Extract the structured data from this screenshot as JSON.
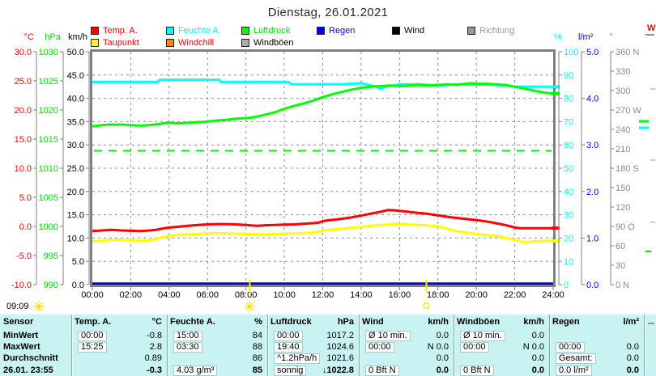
{
  "title": "Dienstag, 26.01.2021",
  "legend": [
    {
      "label": "Temp. A.",
      "swatch": "#ff0000",
      "text": "#ff0000",
      "row": 1
    },
    {
      "label": "Feuchte A.",
      "swatch": "#00ffff",
      "text": "#00ffff",
      "row": 1
    },
    {
      "label": "Luftdruck",
      "swatch": "#00ff00",
      "text": "#00dd00",
      "row": 1
    },
    {
      "label": "Regen",
      "swatch": "#0000ff",
      "text": "#0000ff",
      "row": 1
    },
    {
      "label": "Wind",
      "swatch": "#000000",
      "text": "#000000",
      "row": 1
    },
    {
      "label": "Richtung",
      "swatch": "#999999",
      "text": "#999999",
      "row": 1
    },
    {
      "label": "Taupunkt",
      "swatch": "#ffff00",
      "text": "#ff0000",
      "row": 2
    },
    {
      "label": "Windchill",
      "swatch": "#ff8800",
      "text": "#ff0000",
      "row": 2
    },
    {
      "label": "Windböen",
      "swatch": "#aaaaaa",
      "text": "#000000",
      "row": 2
    }
  ],
  "axes": {
    "left": [
      {
        "id": "celsius",
        "unit": "°C",
        "color": "#ff0000",
        "labels": [
          "30.0",
          "25.0",
          "20.0",
          "15.0",
          "10.0",
          "5.0",
          "0.0",
          "-5.0",
          "-10.0"
        ]
      },
      {
        "id": "hpa",
        "unit": "hPa",
        "color": "#00dd00",
        "labels": [
          "1030",
          "1025",
          "1020",
          "1015",
          "1010",
          "1005",
          "1000",
          "995",
          "990"
        ]
      },
      {
        "id": "kmh",
        "unit": "km/h",
        "color": "#000000",
        "labels": [
          "50.0",
          "45.0",
          "40.0",
          "35.0",
          "30.0",
          "25.0",
          "20.0",
          "15.0",
          "10.0",
          "5.0",
          "0.0"
        ]
      }
    ],
    "right": [
      {
        "id": "percent",
        "unit": "%",
        "color": "#00ffff",
        "labels": [
          "100",
          "90",
          "80",
          "70",
          "60",
          "50",
          "40",
          "30",
          "20",
          "10",
          "0"
        ]
      },
      {
        "id": "lm2",
        "unit": "l/m²",
        "color": "#0000ff",
        "labels": [
          "5.0",
          "4.0",
          "3.0",
          "2.0",
          "1.0",
          "0.0"
        ]
      },
      {
        "id": "deg",
        "unit": "°",
        "color": "#8a8a8a",
        "labels": [
          "360 N",
          "330",
          "300",
          "270 W",
          "240",
          "210",
          "180 S",
          "150",
          "120",
          "90 O",
          "60",
          "30",
          "0  N"
        ]
      },
      {
        "id": "wm2",
        "unit": "W",
        "color": "#ff0000",
        "labels": []
      }
    ]
  },
  "sun": {
    "duration": "09:09",
    "sunrise_hour": 8.2,
    "sunset_hour": 17.4
  },
  "chart_data": {
    "type": "line",
    "title": "Dienstag, 26.01.2021",
    "x_ticks": [
      "00:00",
      "02:00",
      "04:00",
      "06:00",
      "08:00",
      "10:00",
      "12:00",
      "14:00",
      "16:00",
      "18:00",
      "20:00",
      "22:00",
      "24:00"
    ],
    "x_range_hours": [
      0,
      24
    ],
    "grid": true,
    "y_axes": {
      "celsius": [
        -10,
        30
      ],
      "hpa": [
        990,
        1030
      ],
      "kmh": [
        0,
        50
      ],
      "percent": [
        0,
        100
      ],
      "lm2": [
        0,
        5
      ],
      "deg": [
        0,
        360
      ]
    },
    "reference_lines": [
      {
        "axis": "hpa",
        "value": 1013,
        "color": "#00ff00",
        "style": "dashed"
      }
    ],
    "series": [
      {
        "name": "Wind",
        "axis": "kmh",
        "color": "#000000",
        "width": 2,
        "end_marker": false,
        "points": [
          [
            0,
            0
          ],
          [
            24,
            0
          ]
        ]
      },
      {
        "name": "Regen",
        "axis": "lm2",
        "color": "#0000ff",
        "width": 2,
        "end_marker": false,
        "points": [
          [
            0,
            0.03
          ],
          [
            24,
            0.03
          ]
        ]
      },
      {
        "name": "Feuchte A.",
        "axis": "percent",
        "color": "#00ffff",
        "width": 3,
        "end_marker": true,
        "points": [
          [
            0,
            87
          ],
          [
            3.4,
            87
          ],
          [
            3.5,
            88
          ],
          [
            6.6,
            88
          ],
          [
            6.7,
            87
          ],
          [
            10.2,
            87
          ],
          [
            10.4,
            86
          ],
          [
            13,
            86
          ],
          [
            14,
            86.5
          ],
          [
            14.8,
            85
          ],
          [
            15,
            84
          ],
          [
            15.3,
            85
          ],
          [
            16,
            86
          ],
          [
            17,
            86
          ],
          [
            18,
            85.5
          ],
          [
            19,
            86
          ],
          [
            20.5,
            86
          ],
          [
            21.5,
            85.5
          ],
          [
            22,
            85
          ],
          [
            24,
            85
          ]
        ]
      },
      {
        "name": "Luftdruck",
        "axis": "hpa",
        "color": "#00ff00",
        "width": 3,
        "end_marker": true,
        "points": [
          [
            0,
            1017.2
          ],
          [
            0.5,
            1017.4
          ],
          [
            1,
            1017.5
          ],
          [
            1.5,
            1017.5
          ],
          [
            2,
            1017.4
          ],
          [
            2.5,
            1017.3
          ],
          [
            3,
            1017.4
          ],
          [
            3.5,
            1017.6
          ],
          [
            4,
            1017.8
          ],
          [
            4.5,
            1017.7
          ],
          [
            5,
            1017.8
          ],
          [
            5.5,
            1017.9
          ],
          [
            6,
            1018.0
          ],
          [
            6.5,
            1018.2
          ],
          [
            7,
            1018.3
          ],
          [
            7.5,
            1018.5
          ],
          [
            8,
            1018.6
          ],
          [
            8.5,
            1018.8
          ],
          [
            9,
            1019.2
          ],
          [
            9.5,
            1019.6
          ],
          [
            10,
            1020.2
          ],
          [
            10.5,
            1020.7
          ],
          [
            11,
            1021.1
          ],
          [
            11.5,
            1021.6
          ],
          [
            12,
            1022.2
          ],
          [
            12.5,
            1022.7
          ],
          [
            13,
            1023.1
          ],
          [
            13.5,
            1023.5
          ],
          [
            14,
            1023.8
          ],
          [
            14.5,
            1024.0
          ],
          [
            15,
            1024.1
          ],
          [
            15.5,
            1024.2
          ],
          [
            16,
            1024.1
          ],
          [
            16.5,
            1024.2
          ],
          [
            17,
            1024.3
          ],
          [
            17.5,
            1024.2
          ],
          [
            18,
            1024.3
          ],
          [
            18.5,
            1024.4
          ],
          [
            19,
            1024.3
          ],
          [
            19.7,
            1024.6
          ],
          [
            20,
            1024.5
          ],
          [
            20.5,
            1024.5
          ],
          [
            21,
            1024.4
          ],
          [
            21.5,
            1024.3
          ],
          [
            22,
            1024.0
          ],
          [
            22.5,
            1023.7
          ],
          [
            23,
            1023.3
          ],
          [
            23.5,
            1023.0
          ],
          [
            24,
            1022.8
          ]
        ]
      },
      {
        "name": "Taupunkt",
        "axis": "celsius",
        "color": "#ffff00",
        "width": 3,
        "end_marker": true,
        "points": [
          [
            0,
            -2.6
          ],
          [
            0.3,
            -2.5
          ],
          [
            0.6,
            -2.4
          ],
          [
            1,
            -2.3
          ],
          [
            1.5,
            -2.3
          ],
          [
            2,
            -2.4
          ],
          [
            2.5,
            -2.5
          ],
          [
            3,
            -2.4
          ],
          [
            3.3,
            -2.2
          ],
          [
            3.6,
            -1.9
          ],
          [
            4,
            -1.7
          ],
          [
            4.3,
            -1.5
          ],
          [
            4.6,
            -1.4
          ],
          [
            5,
            -1.35
          ],
          [
            5.5,
            -1.3
          ],
          [
            6,
            -1.2
          ],
          [
            6.5,
            -1.15
          ],
          [
            7,
            -1.2
          ],
          [
            7.5,
            -1.25
          ],
          [
            8,
            -1.3
          ],
          [
            8.5,
            -1.35
          ],
          [
            9,
            -1.35
          ],
          [
            9.5,
            -1.3
          ],
          [
            10,
            -1.25
          ],
          [
            10.5,
            -1.2
          ],
          [
            11,
            -1.15
          ],
          [
            11.5,
            -1.05
          ],
          [
            11.8,
            -0.9
          ],
          [
            12,
            -0.7
          ],
          [
            12.5,
            -0.55
          ],
          [
            13,
            -0.4
          ],
          [
            13.5,
            -0.25
          ],
          [
            14,
            -0.1
          ],
          [
            14.5,
            0.1
          ],
          [
            15,
            0.25
          ],
          [
            15.5,
            0.35
          ],
          [
            16,
            0.4
          ],
          [
            16.3,
            0.35
          ],
          [
            16.6,
            0.3
          ],
          [
            17,
            0.25
          ],
          [
            17.5,
            0.15
          ],
          [
            18,
            0.0
          ],
          [
            18.3,
            -0.2
          ],
          [
            18.6,
            -0.5
          ],
          [
            19,
            -0.85
          ],
          [
            19.3,
            -1.0
          ],
          [
            19.6,
            -1.1
          ],
          [
            20,
            -1.3
          ],
          [
            20.5,
            -1.5
          ],
          [
            21,
            -1.65
          ],
          [
            21.3,
            -1.8
          ],
          [
            21.6,
            -2.0
          ],
          [
            22,
            -2.3
          ],
          [
            22.3,
            -2.6
          ],
          [
            22.6,
            -2.7
          ],
          [
            23,
            -2.55
          ],
          [
            23.5,
            -2.5
          ],
          [
            24,
            -2.5
          ]
        ]
      },
      {
        "name": "Temp. A.",
        "axis": "celsius",
        "color": "#ff0000",
        "width": 3,
        "end_marker": true,
        "points": [
          [
            0,
            -0.8
          ],
          [
            0.5,
            -0.7
          ],
          [
            1,
            -0.6
          ],
          [
            1.5,
            -0.7
          ],
          [
            2,
            -0.75
          ],
          [
            2.5,
            -0.8
          ],
          [
            3,
            -0.7
          ],
          [
            3.3,
            -0.6
          ],
          [
            3.6,
            -0.4
          ],
          [
            4,
            -0.2
          ],
          [
            4.5,
            -0.05
          ],
          [
            5,
            0.1
          ],
          [
            5.5,
            0.25
          ],
          [
            6,
            0.35
          ],
          [
            6.5,
            0.4
          ],
          [
            7,
            0.4
          ],
          [
            7.5,
            0.35
          ],
          [
            8,
            0.25
          ],
          [
            8.3,
            0.15
          ],
          [
            8.6,
            0.1
          ],
          [
            9,
            0.2
          ],
          [
            9.5,
            0.25
          ],
          [
            10,
            0.3
          ],
          [
            10.5,
            0.35
          ],
          [
            11,
            0.45
          ],
          [
            11.5,
            0.55
          ],
          [
            11.8,
            0.65
          ],
          [
            12,
            0.9
          ],
          [
            12.3,
            1.05
          ],
          [
            12.6,
            1.15
          ],
          [
            13,
            1.3
          ],
          [
            13.5,
            1.55
          ],
          [
            14,
            1.85
          ],
          [
            14.5,
            2.2
          ],
          [
            15,
            2.5
          ],
          [
            15.4,
            2.8
          ],
          [
            15.8,
            2.75
          ],
          [
            16.2,
            2.6
          ],
          [
            16.6,
            2.45
          ],
          [
            17,
            2.3
          ],
          [
            17.4,
            2.2
          ],
          [
            17.8,
            2.0
          ],
          [
            18.2,
            1.8
          ],
          [
            18.6,
            1.6
          ],
          [
            19,
            1.45
          ],
          [
            19.4,
            1.3
          ],
          [
            19.8,
            1.15
          ],
          [
            20.2,
            1.0
          ],
          [
            20.6,
            0.8
          ],
          [
            21,
            0.55
          ],
          [
            21.4,
            0.3
          ],
          [
            21.8,
            0.0
          ],
          [
            22,
            -0.2
          ],
          [
            22.3,
            -0.3
          ],
          [
            24,
            -0.3
          ]
        ]
      }
    ]
  },
  "table": {
    "row_labels": {
      "header": "Sensor",
      "rows": [
        "MinWert",
        "MaxWert",
        "Durchschnitt",
        "26.01. 23:55"
      ]
    },
    "columns": [
      {
        "header": "Temp. A.",
        "unit": "°C",
        "rows": [
          {
            "info": "00:00",
            "value": "-0.8"
          },
          {
            "info": "15:25",
            "value": "2.8"
          },
          {
            "info": "",
            "value": "0.89"
          },
          {
            "info": "",
            "value": "-0.3"
          }
        ]
      },
      {
        "header": "Feuchte A.",
        "unit": "%",
        "rows": [
          {
            "info": "15:00",
            "value": "84"
          },
          {
            "info": "03:30",
            "value": "88"
          },
          {
            "info": "",
            "value": "86"
          },
          {
            "info": "4.03 g/m³",
            "value": "85"
          }
        ]
      },
      {
        "header": "Luftdruck",
        "unit": "hPa",
        "rows": [
          {
            "info": "00:00",
            "value": "1017.2"
          },
          {
            "info": "19:40",
            "value": "1024.6"
          },
          {
            "info": "^1.2hPa/h",
            "value": "1021.6"
          },
          {
            "info": "sonnig",
            "value": "↓1022.8"
          }
        ]
      },
      {
        "header": "Wind",
        "unit": "km/h",
        "rows": [
          {
            "info": "Ø 10 min.",
            "value": "0.0"
          },
          {
            "info": "00:00",
            "value": "N 0.0"
          },
          {
            "info": "",
            "value": "0.0"
          },
          {
            "info": "0 Bft N",
            "value": "0.0"
          }
        ]
      },
      {
        "header": "Windböen",
        "unit": "km/h",
        "rows": [
          {
            "info": "Ø 10 min.",
            "value": "0.0"
          },
          {
            "info": "00:00",
            "value": "N 0.0"
          },
          {
            "info": "",
            "value": "0.0"
          },
          {
            "info": "0 Bft N",
            "value": "0.0"
          }
        ]
      },
      {
        "header": "Regen",
        "unit": "l/m²",
        "rows": [
          {
            "info": "",
            "value": ""
          },
          {
            "info": "00:00",
            "value": "0.0"
          },
          {
            "info": "Gesamt:",
            "value": "0.0"
          },
          {
            "info": "0.0 l/m²",
            "value": "0.0"
          }
        ]
      }
    ]
  }
}
